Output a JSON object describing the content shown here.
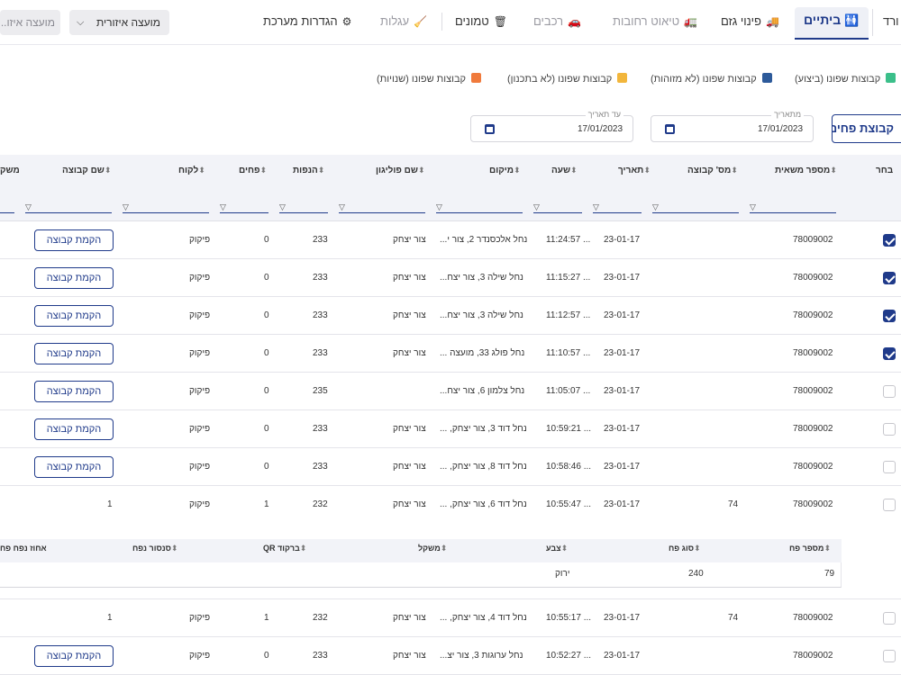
{
  "nav": {
    "edge_label": "ורד",
    "active_tab": "ביתיים",
    "tabs": [
      {
        "label": "פינוי גזם",
        "icon": "truck-icon",
        "disabled": false
      },
      {
        "label": "טיאוט רחובות",
        "icon": "sweeper-icon",
        "disabled": true
      },
      {
        "label": "רכבים",
        "icon": "car-icon",
        "disabled": true
      },
      {
        "label": "טמונים",
        "icon": "trash-icon",
        "disabled": false
      },
      {
        "label": "עגלות",
        "icon": "broom-icon",
        "disabled": true
      },
      {
        "label": "הגדרות מערכת",
        "icon": "gear-icon",
        "disabled": false
      }
    ],
    "council_select": "מועצה איזורית",
    "council_select_2": "מועצה איזו..."
  },
  "legend": [
    {
      "label": "קבוצות שפונו (ביצוע)",
      "color": "#3bbf8a"
    },
    {
      "label": "קבוצות שפונו (לא מזוהות)",
      "color": "#2d5a9a"
    },
    {
      "label": "קבוצות שפונו (לא בתכנון)",
      "color": "#f2b63c"
    },
    {
      "label": "קבוצות שפונו (שנויות)",
      "color": "#f07a3c"
    }
  ],
  "filters": {
    "from_label": "מתאריך",
    "from_value": "17/01/2023",
    "to_label": "עד תאריך",
    "to_value": "17/01/2023",
    "group_button": "קבוצת פחים"
  },
  "table": {
    "headers": {
      "select": "בחר",
      "truck": "מספר משאית",
      "group_no": "מס' קבוצה",
      "date": "תאריך",
      "time": "שעה",
      "location": "מיקום",
      "polygon": "שם פוליגון",
      "lifts": "הנפות",
      "bins": "פחים",
      "client": "לקוח",
      "group_name": "שם קבוצה",
      "edge": "משק"
    },
    "setup_label": "הקמת קבוצה",
    "rows": [
      {
        "checked": true,
        "truck": "78009002",
        "group_no": "",
        "date": "23-01-17",
        "time": "11:24:57 ...",
        "location": "נחל אלכסנדר 2, צור י...",
        "polygon": "צור יצחק",
        "lifts": "233",
        "bins": "0",
        "client": "פיקוק",
        "group_name": "",
        "setup": true
      },
      {
        "checked": true,
        "truck": "78009002",
        "group_no": "",
        "date": "23-01-17",
        "time": "11:15:27 ...",
        "location": "נחל שילה 3, צור יצח...",
        "polygon": "צור יצחק",
        "lifts": "233",
        "bins": "0",
        "client": "פיקוק",
        "group_name": "",
        "setup": true
      },
      {
        "checked": true,
        "truck": "78009002",
        "group_no": "",
        "date": "23-01-17",
        "time": "11:12:57 ...",
        "location": "נחל שילה 3, צור יצח...",
        "polygon": "צור יצחק",
        "lifts": "233",
        "bins": "0",
        "client": "פיקוק",
        "group_name": "",
        "setup": true
      },
      {
        "checked": true,
        "truck": "78009002",
        "group_no": "",
        "date": "23-01-17",
        "time": "11:10:57 ...",
        "location": "נחל פולג 33, מועצה ...",
        "polygon": "צור יצחק",
        "lifts": "233",
        "bins": "0",
        "client": "פיקוק",
        "group_name": "",
        "setup": true
      },
      {
        "checked": false,
        "truck": "78009002",
        "group_no": "",
        "date": "23-01-17",
        "time": "11:05:07 ...",
        "location": "נחל צלמון 6, צור יצח...",
        "polygon": "",
        "lifts": "235",
        "bins": "0",
        "client": "פיקוק",
        "group_name": "",
        "setup": true
      },
      {
        "checked": false,
        "truck": "78009002",
        "group_no": "",
        "date": "23-01-17",
        "time": "10:59:21 ...",
        "location": "נחל דוד 3, צור יצחק, ...",
        "polygon": "צור יצחק",
        "lifts": "233",
        "bins": "0",
        "client": "פיקוק",
        "group_name": "",
        "setup": true
      },
      {
        "checked": false,
        "truck": "78009002",
        "group_no": "",
        "date": "23-01-17",
        "time": "10:58:46 ...",
        "location": "נחל דוד 8, צור יצחק, ...",
        "polygon": "צור יצחק",
        "lifts": "233",
        "bins": "0",
        "client": "פיקוק",
        "group_name": "",
        "setup": true
      },
      {
        "checked": false,
        "truck": "78009002",
        "group_no": "74",
        "date": "23-01-17",
        "time": "10:55:47 ...",
        "location": "נחל דוד 6, צור יצחק, ...",
        "polygon": "צור יצחק",
        "lifts": "232",
        "bins": "1",
        "client": "פיקוק",
        "group_name": "1",
        "setup": false
      }
    ],
    "rows_after": [
      {
        "checked": false,
        "truck": "78009002",
        "group_no": "74",
        "date": "23-01-17",
        "time": "10:55:17 ...",
        "location": "נחל דוד 4, צור יצחק, ...",
        "polygon": "צור יצחק",
        "lifts": "232",
        "bins": "1",
        "client": "פיקוק",
        "group_name": "1",
        "setup": false
      },
      {
        "checked": false,
        "truck": "78009002",
        "group_no": "",
        "date": "23-01-17",
        "time": "10:52:27 ...",
        "location": "נחל ערוגות 3, צור יצ...",
        "polygon": "צור יצחק",
        "lifts": "233",
        "bins": "0",
        "client": "פיקוק",
        "group_name": "",
        "setup": true
      }
    ]
  },
  "nested": {
    "headers": {
      "bin_no": "מספר פח",
      "bin_type": "סוג פח",
      "color": "צבע",
      "weight": "משקל",
      "qr": "ברקוד QR",
      "sensor": "סנסור נפח",
      "percent": "אחוז נפח פח"
    },
    "row": {
      "bin_no": "79",
      "bin_type": "240",
      "color": "ירוק",
      "weight": "",
      "qr": "",
      "sensor": "",
      "percent": ""
    }
  }
}
